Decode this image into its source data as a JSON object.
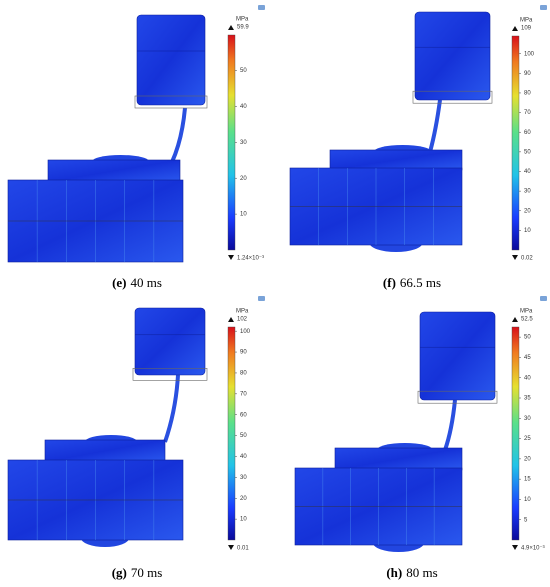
{
  "panels": [
    {
      "label": "(e)",
      "time": "40 ms",
      "unit": "MPa",
      "max": 59.9,
      "min": {
        "value": 0.00124,
        "label": "1.24×10⁻³"
      },
      "ticks": [
        10,
        20,
        30,
        40,
        50
      ]
    },
    {
      "label": "(f)",
      "time": "66.5 ms",
      "unit": "MPa",
      "max": 109,
      "min": 0.02,
      "ticks": [
        10,
        20,
        30,
        40,
        50,
        60,
        70,
        80,
        90,
        100
      ]
    },
    {
      "label": "(g)",
      "time": "70 ms",
      "unit": "MPa",
      "max": 102,
      "min": 0.01,
      "ticks": [
        10,
        20,
        30,
        40,
        50,
        60,
        70,
        80,
        90,
        100
      ]
    },
    {
      "label": "(h)",
      "time": "80 ms",
      "unit": "MPa",
      "max": 52.5,
      "min": {
        "value": 0.0049,
        "label": "4.9×10⁻³"
      },
      "ticks": [
        5,
        10,
        15,
        20,
        25,
        30,
        35,
        40,
        45,
        50
      ]
    }
  ]
}
